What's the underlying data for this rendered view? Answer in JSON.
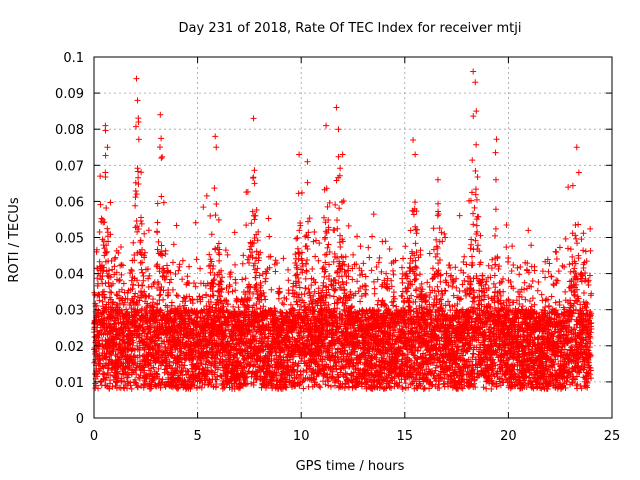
{
  "chart_data": {
    "type": "scatter",
    "title": "Day 231 of 2018, Rate Of TEC Index for receiver mtji",
    "xlabel": "GPS time / hours",
    "ylabel": "ROTI / TECUs",
    "xlim": [
      0,
      25
    ],
    "ylim": [
      0,
      0.1
    ],
    "xticks": [
      0,
      5,
      10,
      15,
      20,
      25
    ],
    "yticks": [
      0,
      0.01,
      0.02,
      0.03,
      0.04,
      0.05,
      0.06,
      0.07,
      0.08,
      0.09,
      0.1
    ],
    "grid": true,
    "marker": "+",
    "series": [
      {
        "name": "ROTI",
        "color": "#ff0000",
        "x_range": [
          0,
          24
        ],
        "sample_interval_hours": 0.0083,
        "baseline_range": [
          0.008,
          0.03
        ],
        "notable_peaks": [
          {
            "x": 0.3,
            "y": 0.067
          },
          {
            "x": 0.55,
            "y": 0.081
          },
          {
            "x": 0.65,
            "y": 0.075
          },
          {
            "x": 2.05,
            "y": 0.094
          },
          {
            "x": 2.1,
            "y": 0.088
          },
          {
            "x": 2.15,
            "y": 0.082
          },
          {
            "x": 3.2,
            "y": 0.084
          },
          {
            "x": 3.25,
            "y": 0.072
          },
          {
            "x": 5.85,
            "y": 0.078
          },
          {
            "x": 5.9,
            "y": 0.075
          },
          {
            "x": 7.7,
            "y": 0.083
          },
          {
            "x": 7.75,
            "y": 0.065
          },
          {
            "x": 9.9,
            "y": 0.073
          },
          {
            "x": 10.3,
            "y": 0.071
          },
          {
            "x": 11.2,
            "y": 0.081
          },
          {
            "x": 11.7,
            "y": 0.086
          },
          {
            "x": 11.8,
            "y": 0.08
          },
          {
            "x": 12.0,
            "y": 0.073
          },
          {
            "x": 15.4,
            "y": 0.077
          },
          {
            "x": 15.5,
            "y": 0.073
          },
          {
            "x": 16.6,
            "y": 0.066
          },
          {
            "x": 18.3,
            "y": 0.096
          },
          {
            "x": 18.4,
            "y": 0.093
          },
          {
            "x": 18.45,
            "y": 0.085
          },
          {
            "x": 19.4,
            "y": 0.066
          },
          {
            "x": 23.3,
            "y": 0.075
          },
          {
            "x": 23.4,
            "y": 0.068
          }
        ]
      }
    ]
  }
}
